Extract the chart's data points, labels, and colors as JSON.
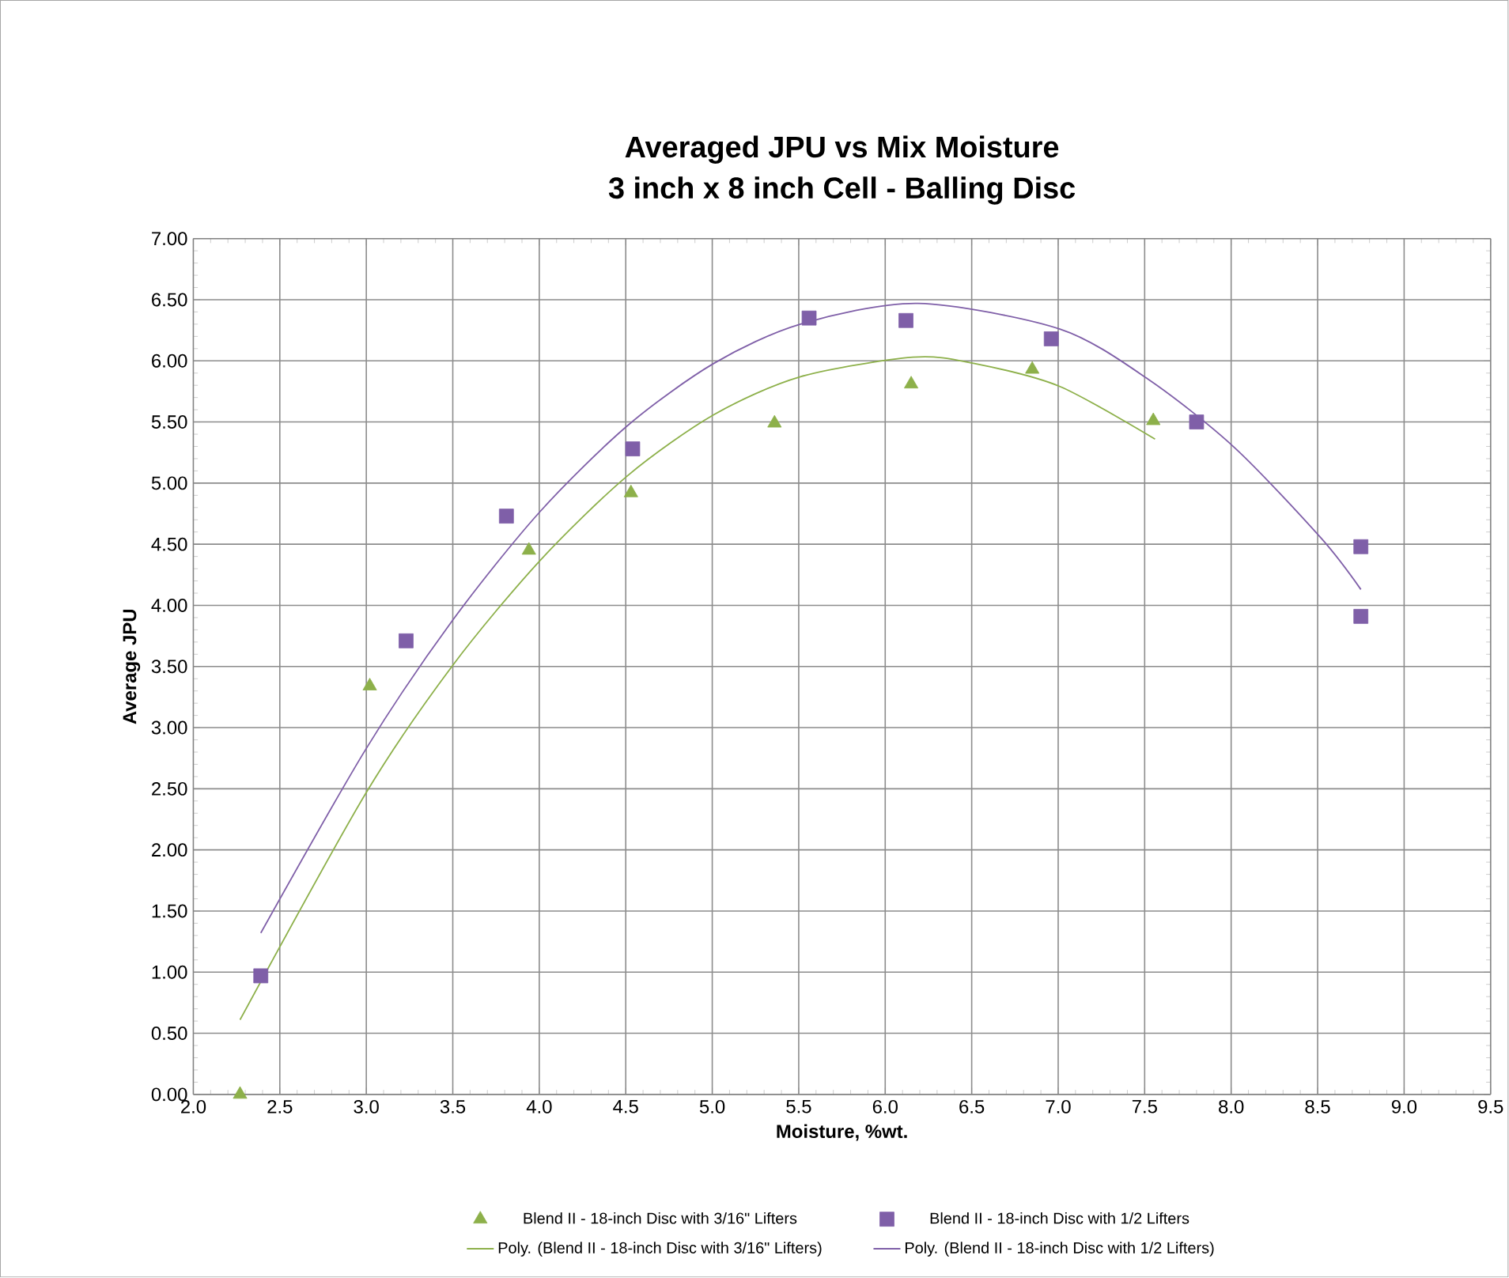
{
  "chart_data": {
    "type": "scatter",
    "title": "Averaged JPU vs Mix Moisture",
    "subtitle": "3 inch x 8 inch Cell - Balling Disc",
    "xlabel": "Moisture, %wt.",
    "ylabel": "Average JPU",
    "xlim": [
      2.0,
      9.5
    ],
    "ylim": [
      0,
      7
    ],
    "xticks": [
      {
        "value": 2.0,
        "label": "2.0"
      },
      {
        "value": 2.5,
        "label": "2.5"
      },
      {
        "value": 3.0,
        "label": "3.0"
      },
      {
        "value": 3.5,
        "label": "3.5"
      },
      {
        "value": 4.0,
        "label": "4.0"
      },
      {
        "value": 4.5,
        "label": "4.5"
      },
      {
        "value": 5.0,
        "label": "5.0"
      },
      {
        "value": 5.5,
        "label": "5.5"
      },
      {
        "value": 6.0,
        "label": "6.0"
      },
      {
        "value": 6.5,
        "label": "6.5"
      },
      {
        "value": 7.0,
        "label": "7.0"
      },
      {
        "value": 7.5,
        "label": "7.5"
      },
      {
        "value": 8.0,
        "label": "8.0"
      },
      {
        "value": 8.5,
        "label": "8.5"
      },
      {
        "value": 9.0,
        "label": "9.0"
      },
      {
        "value": 9.5,
        "label": "9.5"
      }
    ],
    "yticks": [
      {
        "value": 0,
        "label": "0.00"
      },
      {
        "value": 0.5,
        "label": "0.50"
      },
      {
        "value": 1,
        "label": "1.00"
      },
      {
        "value": 1.5,
        "label": "1.50"
      },
      {
        "value": 2,
        "label": "2.00"
      },
      {
        "value": 2.5,
        "label": "2.50"
      },
      {
        "value": 3,
        "label": "3.00"
      },
      {
        "value": 3.5,
        "label": "3.50"
      },
      {
        "value": 4,
        "label": "4.00"
      },
      {
        "value": 4.5,
        "label": "4.50"
      },
      {
        "value": 5,
        "label": "5.00"
      },
      {
        "value": 5.5,
        "label": "5.50"
      },
      {
        "value": 6,
        "label": "6.00"
      },
      {
        "value": 6.5,
        "label": "6.50"
      },
      {
        "value": 7,
        "label": "7.00"
      }
    ],
    "grid": true,
    "legend": "bottom",
    "series": [
      {
        "name": "Blend II - 18-inch Disc with 3/16\" Lifters",
        "marker": "triangle",
        "color": "#8db04a",
        "x": [
          2.27,
          3.02,
          3.94,
          4.53,
          5.36,
          6.15,
          6.85,
          7.55
        ],
        "values": [
          0.0,
          3.34,
          4.45,
          4.92,
          5.49,
          5.81,
          5.93,
          5.51
        ]
      },
      {
        "name": "Blend II - 18-inch Disc with 1/2 Lifters",
        "marker": "square",
        "color": "#7f5fa8",
        "x": [
          2.39,
          3.23,
          3.81,
          4.54,
          5.56,
          6.12,
          6.96,
          7.8,
          8.75,
          8.75
        ],
        "values": [
          0.97,
          3.71,
          4.73,
          5.28,
          6.35,
          6.33,
          6.18,
          5.5,
          4.48,
          3.91
        ]
      },
      {
        "name": "Poly. (Blend II - 18-inch Disc with 3/16\" Lifters)",
        "type": "line",
        "marker": "none",
        "color": "#8db04a",
        "x": [
          2.27,
          3.0,
          3.5,
          4.0,
          4.51,
          5.01,
          5.51,
          6.16,
          6.51,
          7.01,
          7.56
        ],
        "values": [
          0.61,
          2.47,
          3.51,
          4.36,
          5.06,
          5.56,
          5.87,
          6.03,
          5.98,
          5.79,
          5.36
        ]
      },
      {
        "name": "Poly. (Blend II - 18-inch Disc with 1/2 Lifters)",
        "type": "line",
        "marker": "none",
        "color": "#7f5fa8",
        "x": [
          2.39,
          3.0,
          3.5,
          4.0,
          4.51,
          5.01,
          5.51,
          6.19,
          7.01,
          7.52,
          8.02,
          8.52,
          8.75
        ],
        "values": [
          1.32,
          2.83,
          3.88,
          4.76,
          5.47,
          5.98,
          6.3,
          6.47,
          6.26,
          5.85,
          5.29,
          4.55,
          4.13
        ]
      }
    ]
  }
}
